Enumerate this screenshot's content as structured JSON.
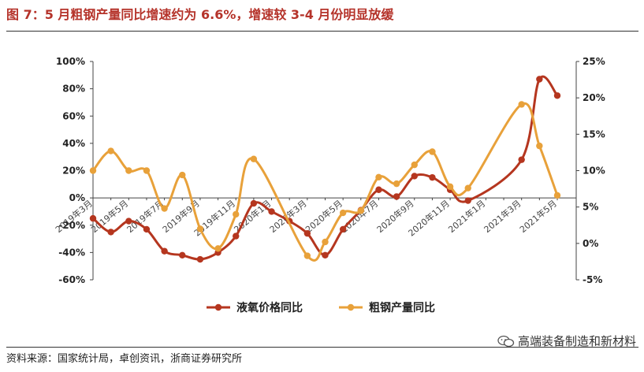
{
  "figure_title": "图 7：5 月粗钢产量同比增速约为 6.6%，增速较 3-4 月份明显放缓",
  "source_text": "资料来源：国家统计局，卓创资讯，浙商证券研究所",
  "watermark_text": "高端装备制造和新材料",
  "watermark_icon": "wechat-icon",
  "chart_data": {
    "type": "line",
    "title": "",
    "categories": [
      "2019年3月",
      "",
      "2019年5月",
      "",
      "2019年7月",
      "",
      "2019年9月",
      "",
      "2019年11月",
      "",
      "2020年1月",
      "",
      "2020年3月",
      "",
      "2020年5月",
      "",
      "2020年7月",
      "",
      "2020年9月",
      "",
      "2020年11月",
      "",
      "2021年1月",
      "",
      "2021年3月",
      "",
      "2021年5月"
    ],
    "series": [
      {
        "name": "液氧价格同比",
        "axis": "left",
        "color": "#b5361f",
        "x": [
          0,
          1,
          2,
          3,
          4,
          5,
          6,
          7,
          8,
          9,
          10,
          11,
          12,
          13,
          14,
          15,
          16,
          17,
          18,
          19,
          20,
          21,
          22,
          23,
          24,
          25,
          26
        ],
        "values": [
          -15,
          -25,
          -17,
          -23,
          -39,
          -42,
          -45,
          -40,
          -28,
          -4,
          -10,
          -17,
          -26,
          -42,
          -23,
          -9,
          6,
          1,
          16,
          15,
          6,
          -2,
          null,
          null,
          28,
          87,
          75
        ]
      },
      {
        "name": "粗钢产量同比",
        "axis": "right",
        "color": "#e8a13a",
        "x": [
          0,
          1,
          2,
          3,
          4,
          5,
          6,
          7,
          8,
          9,
          10,
          11,
          12,
          13,
          14,
          15,
          16,
          17,
          18,
          19,
          20,
          21,
          22,
          23,
          24,
          25,
          26
        ],
        "values": [
          10,
          12.7,
          10,
          10,
          4.8,
          9.4,
          2,
          -0.7,
          4,
          11.6,
          null,
          null,
          -1.7,
          0.2,
          4.2,
          4.5,
          9.1,
          8.2,
          10.8,
          12.6,
          7.8,
          7.6,
          null,
          null,
          19.1,
          13.4,
          6.6
        ]
      }
    ],
    "y_left": {
      "min": -60,
      "max": 100,
      "step": 20,
      "format": "percent"
    },
    "y_right": {
      "min": -5,
      "max": 25,
      "step": 5,
      "format": "percent"
    },
    "legend": {
      "position": "bottom-center"
    }
  }
}
